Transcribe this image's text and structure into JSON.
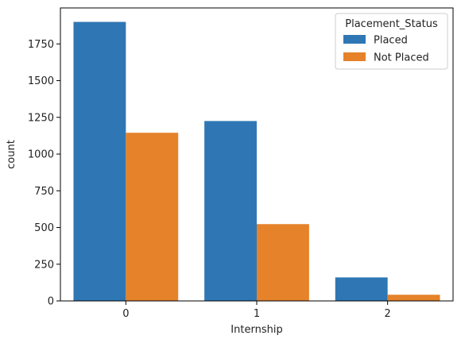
{
  "chart_data": {
    "type": "bar",
    "categories": [
      "0",
      "1",
      "2"
    ],
    "series": [
      {
        "name": "Placed",
        "values": [
          1900,
          1225,
          160
        ],
        "color": "#2f77b4"
      },
      {
        "name": "Not Placed",
        "values": [
          1145,
          523,
          42
        ],
        "color": "#e5822a"
      }
    ],
    "xlabel": "Internship",
    "ylabel": "count",
    "ylim": [
      0,
      1995
    ],
    "yticks": [
      0,
      250,
      500,
      750,
      1000,
      1250,
      1500,
      1750
    ],
    "legend": {
      "title": "Placement_Status",
      "placement": "top-right"
    },
    "grid": false
  }
}
